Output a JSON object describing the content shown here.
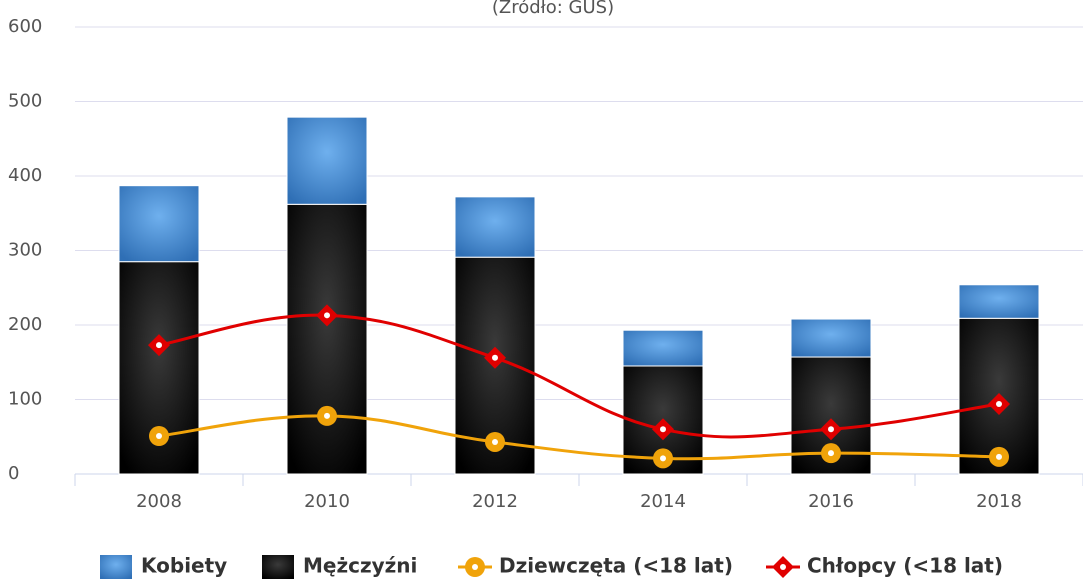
{
  "chart_data": {
    "type": "stacked-bar-line",
    "subtitle": "(Źródło: GUS)",
    "categories": [
      "2008",
      "2010",
      "2012",
      "2014",
      "2016",
      "2018"
    ],
    "ylim": [
      0,
      600
    ],
    "yticks": [
      0,
      100,
      200,
      300,
      400,
      500,
      600
    ],
    "grid": true,
    "series": [
      {
        "name": "Kobiety",
        "type": "bar",
        "color": "#4a90d9",
        "values": [
          102,
          117,
          81,
          48,
          51,
          45
        ]
      },
      {
        "name": "Mężczyźni",
        "type": "bar",
        "color": "#111111",
        "values": [
          285,
          362,
          291,
          145,
          157,
          209
        ]
      },
      {
        "name": "Dziewczęta (<18 lat)",
        "type": "line",
        "marker": "circle",
        "color": "#f0a30a",
        "values": [
          51,
          78,
          43,
          21,
          28,
          23
        ]
      },
      {
        "name": "Chłopcy (<18 lat)",
        "type": "line",
        "marker": "diamond",
        "color": "#e00000",
        "values": [
          173,
          213,
          156,
          60,
          60,
          94
        ]
      }
    ]
  }
}
